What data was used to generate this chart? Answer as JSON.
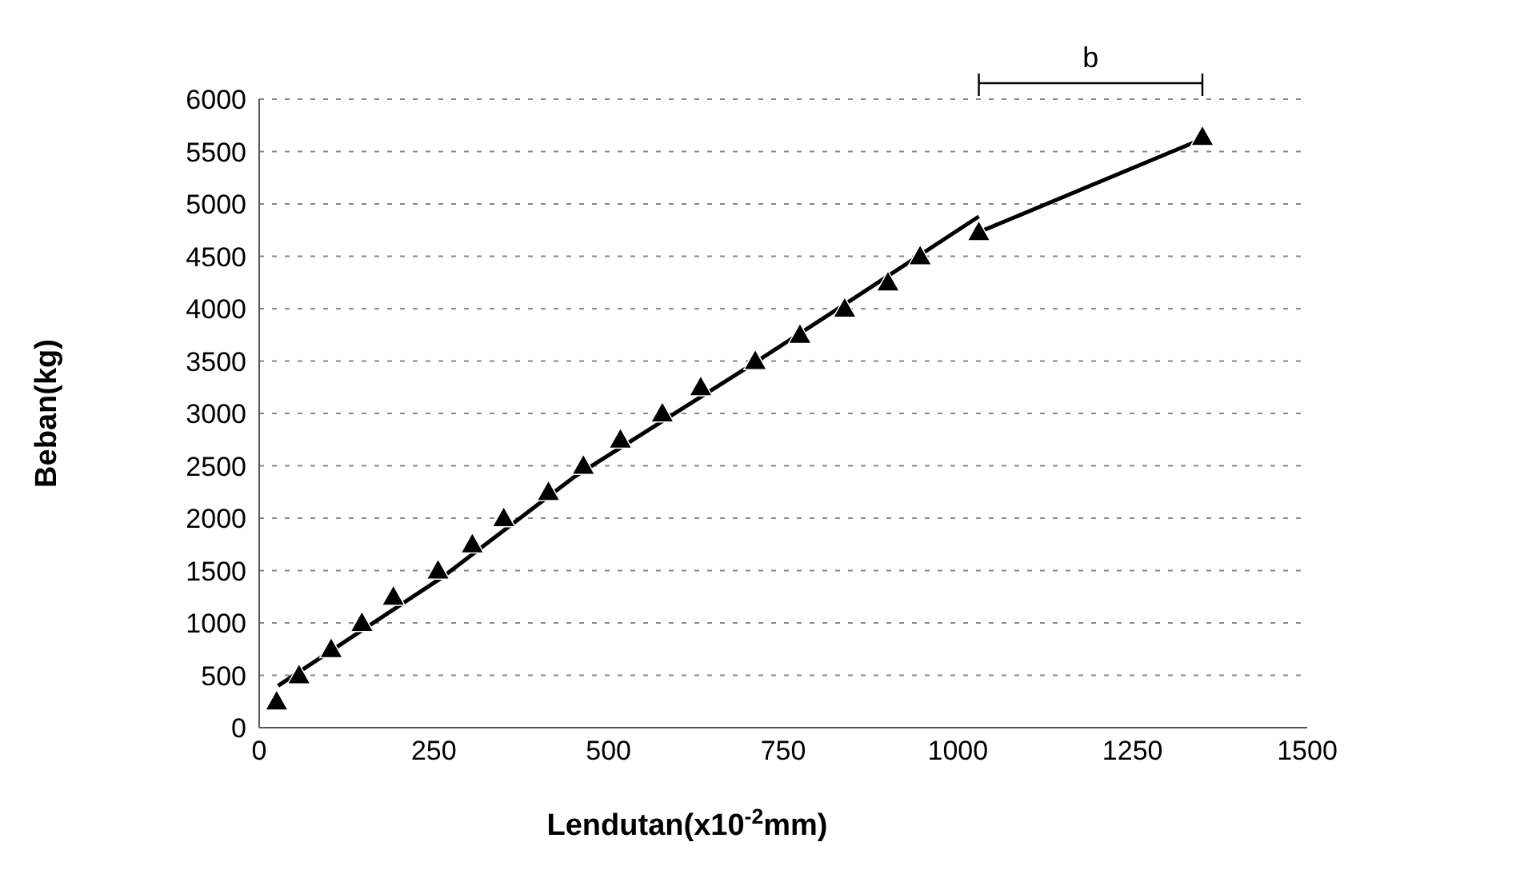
{
  "chart_data": {
    "type": "scatter",
    "xlabel": "Lendutan(x10$^{-2}$mm)",
    "ylabel": "Beban(kg)",
    "annotations": [
      "b"
    ],
    "xlim": [
      0,
      1500
    ],
    "xticks": [
      0,
      250,
      500,
      750,
      1000,
      1250,
      1500
    ],
    "ylim": [
      0,
      6000
    ],
    "yticks": [
      0,
      500,
      1000,
      1500,
      2000,
      2500,
      3000,
      3500,
      4000,
      4500,
      5000,
      5500,
      6000
    ],
    "grid": "y",
    "legend": false,
    "series": [
      {
        "type": "scatter",
        "color": "#000000",
        "marker": "triangle",
        "x": [
          25,
          57,
          103,
          147,
          192,
          256,
          305,
          350,
          414,
          464,
          517,
          577,
          632,
          710,
          774,
          838,
          900,
          946,
          1030,
          1350
        ],
        "values": [
          250,
          500,
          750,
          1000,
          1250,
          1500,
          1750,
          2000,
          2250,
          2500,
          2750,
          3000,
          3250,
          3500,
          3750,
          4000,
          4250,
          4500,
          4730,
          5640
        ]
      },
      {
        "type": "line",
        "marker": "none",
        "color": "#000000",
        "x": [
          27,
          263,
          450,
          699,
          824,
          1030
        ],
        "values": [
          400,
          1440,
          2390,
          3440,
          3980,
          4880
        ]
      },
      {
        "type": "line",
        "marker": "none",
        "color": "#000000",
        "x": [
          1030,
          1350
        ],
        "values": [
          4730,
          5620
        ]
      }
    ]
  }
}
